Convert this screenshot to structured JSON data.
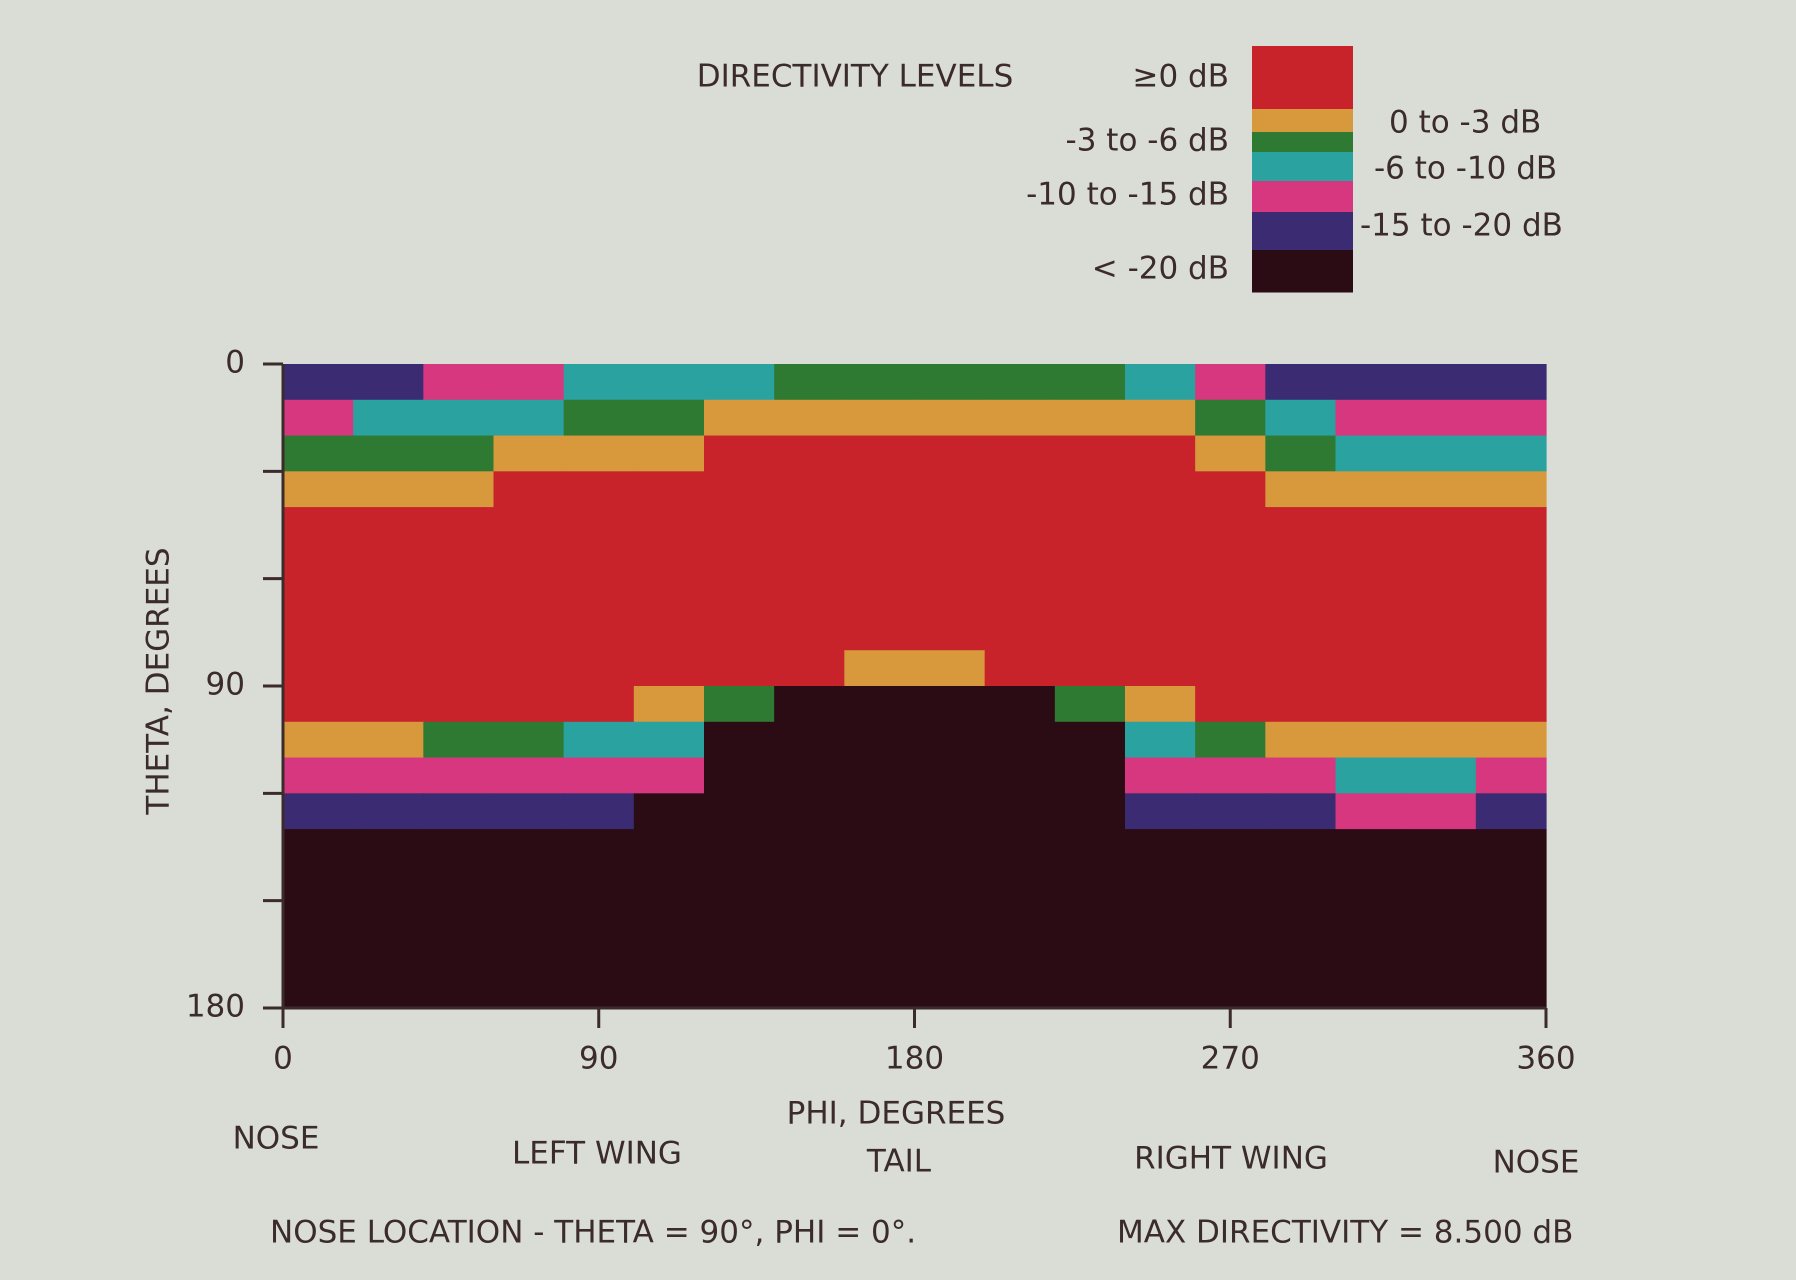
{
  "chart_data": {
    "type": "heatmap",
    "legend_title": "DIRECTIVITY LEVELS",
    "levels": [
      {
        "label": "≥0 dB",
        "color": "#c8222b",
        "range": [
          0,
          null
        ]
      },
      {
        "label": "0 to -3 dB",
        "color": "#d8983c",
        "range": [
          -3,
          0
        ]
      },
      {
        "label": "-3 to -6 dB",
        "color": "#2f7a33",
        "range": [
          -6,
          -3
        ]
      },
      {
        "label": "-6 to -10 dB",
        "color": "#2aa2a0",
        "range": [
          -10,
          -6
        ]
      },
      {
        "label": "-10 to -15 dB",
        "color": "#d6377f",
        "range": [
          -15,
          -10
        ]
      },
      {
        "label": "-15 to -20 dB",
        "color": "#3b2b72",
        "range": [
          -20,
          -15
        ]
      },
      {
        "label": "< -20 dB",
        "color": "#2b0c15",
        "range": [
          null,
          -20
        ]
      }
    ],
    "xlabel": "PHI, DEGREES",
    "ylabel": "THETA, DEGREES",
    "xlim": [
      0,
      360
    ],
    "xticks": [
      0,
      90,
      180,
      270,
      360
    ],
    "ylim": [
      0,
      180
    ],
    "yticks": [
      0,
      {
        "value": 30,
        "label": null
      },
      {
        "value": 60,
        "label": null
      },
      90,
      {
        "value": 120,
        "label": null
      },
      {
        "value": 150,
        "label": null
      },
      180
    ],
    "x": [
      10,
      30,
      50,
      70,
      90,
      110,
      130,
      150,
      170,
      190,
      210,
      230,
      250,
      270,
      290,
      310,
      330,
      350
    ],
    "y": [
      5,
      15,
      25,
      35,
      45,
      55,
      65,
      75,
      85,
      95,
      105,
      115,
      125,
      135,
      145,
      155,
      165,
      175
    ],
    "z": [
      [
        -17,
        -17,
        -12,
        -12,
        -8,
        -8,
        -8,
        -4.5,
        -4.5,
        -4.5,
        -4.5,
        -4.5,
        -8,
        -12,
        -17,
        -17,
        -17,
        -17
      ],
      [
        -12,
        -8,
        -8,
        -8,
        -4.5,
        -4.5,
        -1.5,
        -1.5,
        -1.5,
        -1.5,
        -1.5,
        -1.5,
        -1.5,
        -4.5,
        -8,
        -12,
        -12,
        -12
      ],
      [
        -4.5,
        -4.5,
        -4.5,
        -1.5,
        -1.5,
        -1.5,
        3,
        3,
        3,
        3,
        3,
        3,
        3,
        -1.5,
        -4.5,
        -8,
        -8,
        -8
      ],
      [
        -1.5,
        -1.5,
        -1.5,
        3,
        3,
        3,
        3,
        3,
        3,
        3,
        3,
        3,
        3,
        3,
        -1.5,
        -1.5,
        -1.5,
        -1.5
      ],
      [
        3,
        3,
        3,
        3,
        3,
        3,
        3,
        3,
        3,
        3,
        3,
        3,
        3,
        3,
        3,
        3,
        3,
        3
      ],
      [
        3,
        3,
        3,
        3,
        3,
        3,
        3,
        3,
        3,
        3,
        3,
        3,
        3,
        3,
        3,
        3,
        3,
        3
      ],
      [
        3,
        3,
        3,
        3,
        3,
        3,
        3,
        3,
        3,
        3,
        3,
        3,
        3,
        3,
        3,
        3,
        3,
        3
      ],
      [
        3,
        3,
        3,
        3,
        3,
        3,
        3,
        3,
        3,
        3,
        3,
        3,
        3,
        3,
        3,
        3,
        3,
        3
      ],
      [
        3,
        3,
        3,
        3,
        3,
        3,
        3,
        3,
        -1.5,
        -1.5,
        3,
        3,
        3,
        3,
        3,
        3,
        3,
        3
      ],
      [
        3,
        3,
        3,
        3,
        3,
        -1.5,
        -4.5,
        -25,
        -25,
        -25,
        -25,
        -4.5,
        -1.5,
        3,
        3,
        3,
        3,
        3
      ],
      [
        -1.5,
        -1.5,
        -4.5,
        -4.5,
        -8,
        -8,
        -25,
        -25,
        -25,
        -25,
        -25,
        -25,
        -8,
        -4.5,
        -1.5,
        -1.5,
        -1.5,
        -1.5
      ],
      [
        -12,
        -12,
        -12,
        -12,
        -12,
        -12,
        -25,
        -25,
        -25,
        -25,
        -25,
        -25,
        -12,
        -12,
        -12,
        -8,
        -8,
        -12
      ],
      [
        -17,
        -17,
        -17,
        -17,
        -17,
        -25,
        -25,
        -25,
        -25,
        -25,
        -25,
        -25,
        -17,
        -17,
        -17,
        -12,
        -12,
        -17
      ],
      [
        -25,
        -25,
        -25,
        -25,
        -25,
        -25,
        -25,
        -25,
        -25,
        -25,
        -25,
        -25,
        -25,
        -25,
        -25,
        -25,
        -25,
        -25
      ],
      [
        -25,
        -25,
        -25,
        -25,
        -25,
        -25,
        -25,
        -25,
        -25,
        -25,
        -25,
        -25,
        -25,
        -25,
        -25,
        -25,
        -25,
        -25
      ],
      [
        -25,
        -25,
        -25,
        -25,
        -25,
        -25,
        -25,
        -25,
        -25,
        -25,
        -25,
        -25,
        -25,
        -25,
        -25,
        -25,
        -25,
        -25
      ],
      [
        -25,
        -25,
        -25,
        -25,
        -25,
        -25,
        -25,
        -25,
        -25,
        -25,
        -25,
        -25,
        -25,
        -25,
        -25,
        -25,
        -25,
        -25
      ],
      [
        -25,
        -25,
        -25,
        -25,
        -25,
        -25,
        -25,
        -25,
        -25,
        -25,
        -25,
        -25,
        -25,
        -25,
        -25,
        -25,
        -25,
        -25
      ]
    ],
    "direction_labels": [
      "NOSE",
      "LEFT WING",
      "TAIL",
      "RIGHT WING",
      "NOSE"
    ],
    "footnotes": [
      "NOSE LOCATION - THETA = 90°, PHI = 0°.",
      "MAX DIRECTIVITY = 8.500 dB"
    ]
  }
}
